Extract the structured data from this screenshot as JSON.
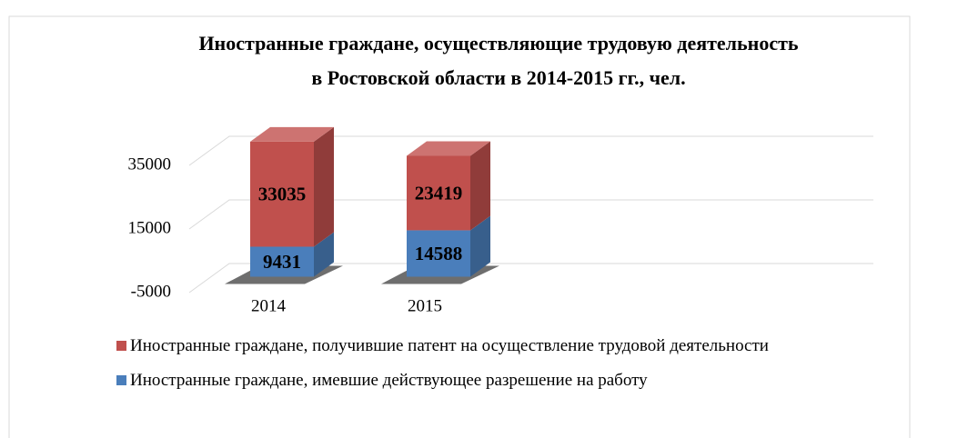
{
  "chart_data": {
    "type": "bar3d_stacked",
    "title": "Иностранные граждане, осуществляющие трудовую деятельность в Ростовской области в 2014-2015 гг., чел.",
    "categories": [
      "2014",
      "2015"
    ],
    "series": [
      {
        "name": "Иностранные граждане, имевшие действующее разрешение на работу",
        "color": "#4a7ebb",
        "values": [
          9431,
          14588
        ]
      },
      {
        "name": "Иностранные граждане, получившие патент на осуществление трудовой деятельности",
        "color": "#c0504d",
        "values": [
          33035,
          23419
        ]
      }
    ],
    "ylim": [
      -5000,
      45000
    ],
    "yticks": [
      -5000,
      15000,
      35000
    ],
    "grid": true,
    "legend": "bottom"
  }
}
